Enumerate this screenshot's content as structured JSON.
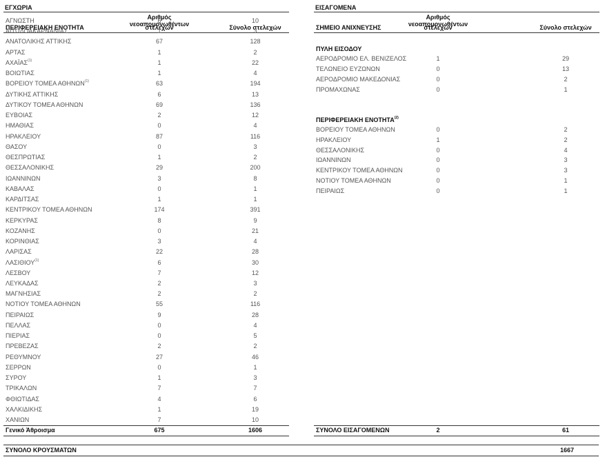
{
  "domestic": {
    "title": "ΕΓΧΩΡΙΑ",
    "col1_header": "ΠΕΡΙΦΕΡΕΙΑΚΗ ΕΝΟΤΗΤΑ",
    "col2_header_line1": "Αριθμός νεοαπομονωθέντων",
    "col2_header_line2": "στελεχών",
    "col3_header": "Σύνολο στελεχών",
    "rows": [
      {
        "name": "ΑΓΝΩΣΤΗ",
        "new": "6",
        "total": "10"
      },
      {
        "name": "ΑΙΤΩΛΟΑΚΑΡΝΑΝΙΑΣ",
        "new": "1",
        "total": "3"
      },
      {
        "name": "ΑΝΑΤΟΛΙΚΗΣ ΑΤΤΙΚΗΣ",
        "new": "67",
        "total": "128"
      },
      {
        "name": "ΑΡΤΑΣ",
        "new": "1",
        "total": "2"
      },
      {
        "name": "ΑΧΑΪΑΣ",
        "note": "(1)",
        "new": "1",
        "total": "22"
      },
      {
        "name": "ΒΟΙΩΤΙΑΣ",
        "new": "1",
        "total": "4"
      },
      {
        "name": "ΒΟΡΕΙΟΥ ΤΟΜΕΑ ΑΘΗΝΩΝ",
        "note": "(1)",
        "new": "63",
        "total": "194"
      },
      {
        "name": "ΔΥΤΙΚΗΣ ΑΤΤΙΚΗΣ",
        "new": "6",
        "total": "13"
      },
      {
        "name": "ΔΥΤΙΚΟΥ ΤΟΜΕΑ ΑΘΗΝΩΝ",
        "new": "69",
        "total": "136"
      },
      {
        "name": "ΕΥΒΟΙΑΣ",
        "new": "2",
        "total": "12"
      },
      {
        "name": "ΗΜΑΘΙΑΣ",
        "new": "0",
        "total": "4"
      },
      {
        "name": "ΗΡΑΚΛΕΙΟΥ",
        "new": "87",
        "total": "116"
      },
      {
        "name": "ΘΑΣΟΥ",
        "new": "0",
        "total": "3"
      },
      {
        "name": "ΘΕΣΠΡΩΤΙΑΣ",
        "new": "1",
        "total": "2"
      },
      {
        "name": "ΘΕΣΣΑΛΟΝΙΚΗΣ",
        "new": "29",
        "total": "200"
      },
      {
        "name": "ΙΩΑΝΝΙΝΩΝ",
        "new": "3",
        "total": "8"
      },
      {
        "name": "ΚΑΒΑΛΑΣ",
        "new": "0",
        "total": "1"
      },
      {
        "name": "ΚΑΡΔΙΤΣΑΣ",
        "new": "1",
        "total": "1"
      },
      {
        "name": "ΚΕΝΤΡΙΚΟΥ ΤΟΜΕΑ ΑΘΗΝΩΝ",
        "new": "174",
        "total": "391"
      },
      {
        "name": "ΚΕΡΚΥΡΑΣ",
        "new": "8",
        "total": "9"
      },
      {
        "name": "ΚΟΖΑΝΗΣ",
        "new": "0",
        "total": "21"
      },
      {
        "name": "ΚΟΡΙΝΘΙΑΣ",
        "new": "3",
        "total": "4"
      },
      {
        "name": "ΛΑΡΙΣΑΣ",
        "new": "22",
        "total": "28"
      },
      {
        "name": "ΛΑΣΙΘΙΟΥ",
        "note": "(1)",
        "new": "6",
        "total": "30"
      },
      {
        "name": "ΛΕΣΒΟΥ",
        "new": "7",
        "total": "12"
      },
      {
        "name": "ΛΕΥΚΑΔΑΣ",
        "new": "2",
        "total": "3"
      },
      {
        "name": "ΜΑΓΝΗΣΙΑΣ",
        "new": "2",
        "total": "2"
      },
      {
        "name": "ΝΟΤΙΟΥ ΤΟΜΕΑ ΑΘΗΝΩΝ",
        "new": "55",
        "total": "116"
      },
      {
        "name": "ΠΕΙΡΑΙΩΣ",
        "new": "9",
        "total": "28"
      },
      {
        "name": "ΠΕΛΛΑΣ",
        "new": "0",
        "total": "4"
      },
      {
        "name": "ΠΙΕΡΙΑΣ",
        "new": "0",
        "total": "5"
      },
      {
        "name": "ΠΡΕΒΕΖΑΣ",
        "new": "2",
        "total": "2"
      },
      {
        "name": "ΡΕΘΥΜΝΟΥ",
        "new": "27",
        "total": "46"
      },
      {
        "name": "ΣΕΡΡΩΝ",
        "new": "0",
        "total": "1"
      },
      {
        "name": "ΣΥΡΟΥ",
        "new": "1",
        "total": "3"
      },
      {
        "name": "ΤΡΙΚΑΛΩΝ",
        "new": "7",
        "total": "7"
      },
      {
        "name": "ΦΘΙΩΤΙΔΑΣ",
        "new": "4",
        "total": "6"
      },
      {
        "name": "ΧΑΛΚΙΔΙΚΗΣ",
        "new": "1",
        "total": "19"
      },
      {
        "name": "ΧΑΝΙΩΝ",
        "new": "7",
        "total": "10"
      }
    ],
    "total_label": "Γενικό Άθροισμα",
    "total_new": "675",
    "total_all": "1606"
  },
  "imported": {
    "title": "ΕΙΣΑΓΟΜΕΝΑ",
    "col1_header": "ΣΗΜΕΙΟ ΑΝΙΧΝΕΥΣΗΣ",
    "col2_header_line1": "Αριθμός νεοαπομονωθέντων",
    "col2_header_line2": "στελεχών",
    "col3_header": "Σύνολο στελεχών",
    "rows": [
      {
        "type": "blank"
      },
      {
        "type": "group",
        "name": "ΠΥΛΗ ΕΙΣΟΔΟΥ"
      },
      {
        "name": "ΑΕΡΟΔΡΟΜΙΟ ΕΛ. ΒΕΝΙΖΕΛΟΣ",
        "new": "1",
        "total": "29"
      },
      {
        "name": "ΤΕΛΩΝΕΙΟ ΕΥΖΩΝΩΝ",
        "new": "0",
        "total": "13"
      },
      {
        "name": "ΑΕΡΟΔΡΟΜΙΟ ΜΑΚΕΔΟΝΙΑΣ",
        "new": "0",
        "total": "2"
      },
      {
        "name": "ΠΡΟΜΑΧΩΝΑΣ",
        "new": "0",
        "total": "1"
      },
      {
        "type": "blank"
      },
      {
        "type": "blank"
      },
      {
        "type": "group",
        "name": "ΠΕΡΙΦΕΡΕΙΑΚΗ ΕΝΟΤΗΤΑ",
        "note": "(2)"
      },
      {
        "name": "ΒΟΡΕΙΟΥ ΤΟΜΕΑ ΑΘΗΝΩΝ",
        "new": "0",
        "total": "2"
      },
      {
        "name": "ΗΡΑΚΛΕΙΟΥ",
        "new": "1",
        "total": "2"
      },
      {
        "name": "ΘΕΣΣΑΛΟΝΙΚΗΣ",
        "new": "0",
        "total": "4"
      },
      {
        "name": "ΙΩΑΝΝΙΝΩΝ",
        "new": "0",
        "total": "3"
      },
      {
        "name": "ΚΕΝΤΡΙΚΟΥ ΤΟΜΕΑ ΑΘΗΝΩΝ",
        "new": "0",
        "total": "3"
      },
      {
        "name": "ΝΟΤΙΟΥ ΤΟΜΕΑ ΑΘΗΝΩΝ",
        "new": "0",
        "total": "1"
      },
      {
        "name": "ΠΕΙΡΑΙΩΣ",
        "new": "0",
        "total": "1"
      }
    ],
    "total_label": "ΣΥΝΟΛΟ ΕΙΣΑΓΟΜΕΝΩΝ",
    "total_new": "2",
    "total_all": "61"
  },
  "grand_total": {
    "label": "ΣΥΝΟΛΟ ΚΡΟΥΣΜΑΤΩΝ",
    "value": "1667"
  }
}
